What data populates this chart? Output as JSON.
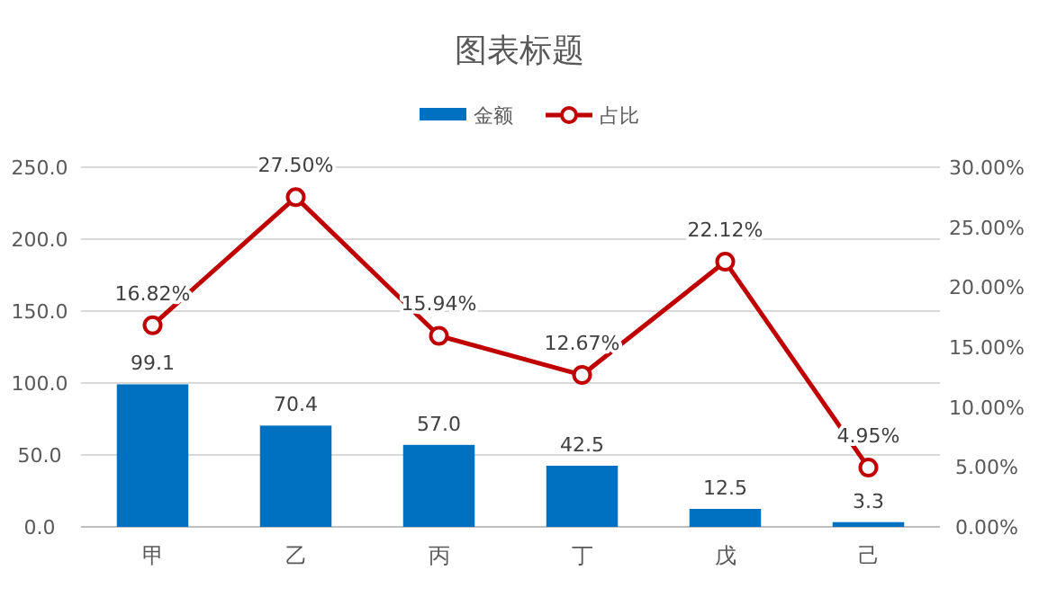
{
  "chart_data": {
    "type": "bar",
    "title": "图表标题",
    "categories": [
      "甲",
      "乙",
      "丙",
      "丁",
      "戊",
      "己"
    ],
    "series": [
      {
        "name": "金额",
        "color": "#0070c0",
        "values": [
          99.1,
          70.4,
          57.0,
          42.5,
          12.5,
          3.3
        ],
        "value_labels": [
          "99.1",
          "70.4",
          "57.0",
          "42.5",
          "12.5",
          "3.3"
        ]
      },
      {
        "name": "占比",
        "type": "line",
        "axis": "y2",
        "color": "#c00000",
        "marker": "circle",
        "values": [
          16.82,
          27.5,
          15.94,
          12.67,
          22.12,
          4.95
        ],
        "value_labels": [
          "16.82%",
          "27.50%",
          "15.94%",
          "12.67%",
          "22.12%",
          "4.95%"
        ]
      }
    ],
    "ylim": [
      0,
      250
    ],
    "yticks": [
      {
        "value": 0,
        "label": "0.0"
      },
      {
        "value": 50,
        "label": "50.0"
      },
      {
        "value": 100,
        "label": "100.0"
      },
      {
        "value": 150,
        "label": "150.0"
      },
      {
        "value": 200,
        "label": "200.0"
      },
      {
        "value": 250,
        "label": "250.0"
      }
    ],
    "y2lim": [
      0,
      30
    ],
    "y2ticks": [
      {
        "value": 0,
        "label": "0.00%"
      },
      {
        "value": 5,
        "label": "5.00%"
      },
      {
        "value": 10,
        "label": "10.00%"
      },
      {
        "value": 15,
        "label": "15.00%"
      },
      {
        "value": 20,
        "label": "20.00%"
      },
      {
        "value": 25,
        "label": "25.00%"
      },
      {
        "value": 30,
        "label": "30.00%"
      }
    ],
    "grid": "y",
    "legend": "top"
  }
}
